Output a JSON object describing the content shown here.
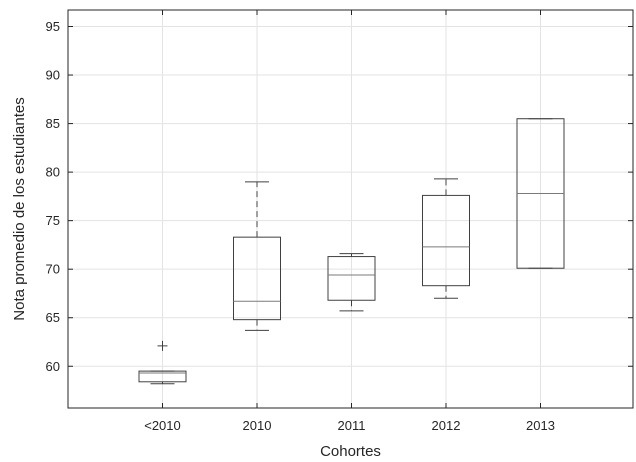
{
  "chart_data": {
    "type": "box",
    "title": "",
    "xlabel": "Cohortes",
    "ylabel": "Nota promedio de los estudiantes",
    "ylim": [
      55.7,
      96.7
    ],
    "yticks": [
      60,
      65,
      70,
      75,
      80,
      85,
      90,
      95
    ],
    "grid": true,
    "categories": [
      "<2010",
      "2010",
      "2011",
      "2012",
      "2013"
    ],
    "boxes": [
      {
        "category": "<2010",
        "whisker_low": 58.2,
        "q1": 58.4,
        "median": 59.3,
        "q3": 59.5,
        "whisker_high": 59.5,
        "outliers": [
          62.1
        ]
      },
      {
        "category": "2010",
        "whisker_low": 63.7,
        "q1": 64.8,
        "median": 66.7,
        "q3": 73.3,
        "whisker_high": 79.0,
        "outliers": []
      },
      {
        "category": "2011",
        "whisker_low": 65.7,
        "q1": 66.8,
        "median": 69.4,
        "q3": 71.3,
        "whisker_high": 71.6,
        "outliers": []
      },
      {
        "category": "2012",
        "whisker_low": 67.0,
        "q1": 68.3,
        "median": 72.3,
        "q3": 77.6,
        "whisker_high": 79.3,
        "outliers": []
      },
      {
        "category": "2013",
        "whisker_low": 70.1,
        "q1": 70.1,
        "median": 77.8,
        "q3": 85.5,
        "whisker_high": 85.5,
        "outliers": []
      }
    ]
  }
}
